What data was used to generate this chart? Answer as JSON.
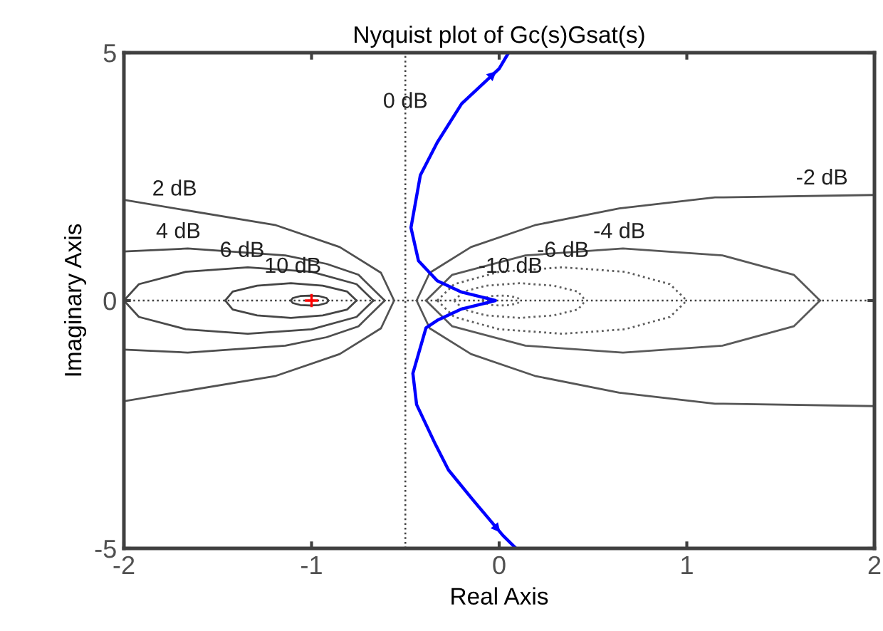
{
  "chart_data": {
    "type": "line",
    "title": "Nyquist plot of Gc(s)Gsat(s)",
    "xlabel": "Real Axis",
    "ylabel": "Imaginary Axis",
    "xlim": [
      -2,
      2
    ],
    "ylim": [
      -5,
      5
    ],
    "xticks": [
      -2,
      -1,
      0,
      1,
      2
    ],
    "yticks": [
      -5,
      0,
      5
    ],
    "grid": false,
    "series": [
      {
        "color": "#404040",
        "line_style": "solid",
        "x": [
          -1.11,
          -1.1,
          -1.06,
          -1.01,
          -0.96,
          -0.92,
          -0.91
        ],
        "values": [
          0,
          0.05,
          0.09,
          0.1,
          0.09,
          0.05,
          0
        ]
      },
      {
        "color": "#424242",
        "line_style": "solid",
        "x": [
          -1.11,
          -1.1,
          -1.06,
          -1.01,
          -0.96,
          -0.92,
          -0.91
        ],
        "values": [
          0,
          -0.05,
          -0.09,
          -0.1,
          -0.09,
          -0.05,
          0
        ]
      },
      {
        "color": "#444444",
        "line_style": "solid",
        "x": [
          -1.46,
          -1.42,
          -1.29,
          -1.11,
          -0.94,
          -0.81,
          -0.76
        ],
        "values": [
          0,
          0.18,
          0.3,
          0.35,
          0.3,
          0.18,
          0
        ]
      },
      {
        "color": "#464646",
        "line_style": "solid",
        "x": [
          -1.46,
          -1.42,
          -1.29,
          -1.11,
          -0.94,
          -0.81,
          -0.76
        ],
        "values": [
          0,
          -0.18,
          -0.3,
          -0.35,
          -0.3,
          -0.18,
          0
        ]
      },
      {
        "color": "#484848",
        "line_style": "solid",
        "x": [
          -2.0,
          -1.92,
          -1.67,
          -1.34,
          -1.0,
          -0.76,
          -0.67
        ],
        "values": [
          0,
          0.33,
          0.58,
          0.67,
          0.58,
          0.33,
          0
        ]
      },
      {
        "color": "#4a4a4a",
        "line_style": "solid",
        "x": [
          -2.0,
          -1.92,
          -1.67,
          -1.34,
          -1.0,
          -0.76,
          -0.67
        ],
        "values": [
          0,
          -0.33,
          -0.58,
          -0.67,
          -0.58,
          -0.33,
          0
        ]
      },
      {
        "color": "#4c4c4c",
        "line_style": "solid",
        "x": [
          -2.0,
          -1.66,
          -1.14,
          -0.92,
          -0.75,
          -0.61
        ],
        "values": [
          0.99,
          1.05,
          0.91,
          0.74,
          0.52,
          0
        ]
      },
      {
        "color": "#4e4e4e",
        "line_style": "solid",
        "x": [
          -2.0,
          -1.66,
          -1.14,
          -0.92,
          -0.75,
          -0.61
        ],
        "values": [
          -0.99,
          -1.05,
          -0.91,
          -0.74,
          -0.52,
          0
        ]
      },
      {
        "color": "#505050",
        "line_style": "solid",
        "x": [
          -2.0,
          -1.19,
          -0.85,
          -0.63,
          -0.56
        ],
        "values": [
          2.03,
          1.52,
          1.08,
          0.56,
          0
        ]
      },
      {
        "color": "#525252",
        "line_style": "solid",
        "x": [
          -2.0,
          -1.19,
          -0.85,
          -0.63,
          -0.56
        ],
        "values": [
          -2.03,
          -1.52,
          -1.08,
          -0.56,
          0
        ]
      },
      {
        "color": "#545454",
        "line_style": "solid",
        "x": [
          -0.44,
          -0.37,
          -0.15,
          0.19,
          0.64,
          1.15,
          2.0
        ],
        "values": [
          0,
          0.56,
          1.08,
          1.52,
          1.86,
          2.08,
          2.13
        ]
      },
      {
        "color": "#565656",
        "line_style": "solid",
        "x": [
          -0.44,
          -0.37,
          -0.15,
          0.19,
          0.64,
          1.15,
          2.0
        ],
        "values": [
          0,
          -0.56,
          -1.08,
          -1.52,
          -1.86,
          -2.08,
          -2.13
        ]
      },
      {
        "color": "#585858",
        "line_style": "solid",
        "x": [
          -0.39,
          -0.25,
          0.14,
          0.66,
          1.19,
          1.57,
          1.71
        ],
        "values": [
          0,
          0.52,
          0.91,
          1.05,
          0.91,
          0.52,
          0
        ]
      },
      {
        "color": "#5a5a5a",
        "line_style": "solid",
        "x": [
          -0.39,
          -0.25,
          0.14,
          0.66,
          1.19,
          1.57,
          1.71
        ],
        "values": [
          0,
          -0.52,
          -0.91,
          -1.05,
          -0.91,
          -0.52,
          0
        ]
      },
      {
        "color": "#5c5c5c",
        "line_style": "dotted",
        "x": [
          -0.33,
          -0.24,
          0.0,
          0.34,
          0.67,
          0.91,
          1.0
        ],
        "values": [
          0,
          0.33,
          0.58,
          0.67,
          0.58,
          0.33,
          0
        ]
      },
      {
        "color": "#5e5e5e",
        "line_style": "dotted",
        "x": [
          -0.33,
          -0.24,
          0.0,
          0.34,
          0.67,
          0.91,
          1.0
        ],
        "values": [
          0,
          -0.33,
          -0.58,
          -0.67,
          -0.58,
          -0.33,
          0
        ]
      },
      {
        "color": "#606060",
        "line_style": "dotted",
        "x": [
          -0.24,
          -0.19,
          -0.07,
          0.11,
          0.29,
          0.42,
          0.46
        ],
        "values": [
          0,
          0.18,
          0.3,
          0.35,
          0.3,
          0.18,
          0
        ]
      },
      {
        "color": "#626262",
        "line_style": "dotted",
        "x": [
          -0.24,
          -0.19,
          -0.07,
          0.11,
          0.29,
          0.42,
          0.46
        ],
        "values": [
          0,
          -0.18,
          -0.3,
          -0.35,
          -0.3,
          -0.18,
          0
        ]
      },
      {
        "color": "#646464",
        "line_style": "dotted",
        "x": [
          -0.09,
          -0.08,
          -0.04,
          0.01,
          0.06,
          0.1,
          0.11
        ],
        "values": [
          0,
          0.05,
          0.09,
          0.1,
          0.09,
          0.05,
          0
        ]
      },
      {
        "color": "#666666",
        "line_style": "dotted",
        "x": [
          -0.09,
          -0.08,
          -0.04,
          0.01,
          0.06,
          0.1,
          0.11
        ],
        "values": [
          0,
          -0.05,
          -0.09,
          -0.1,
          -0.09,
          -0.05,
          0
        ]
      },
      {
        "color": "#0000ff",
        "line_style": "solid",
        "x": [
          0.05,
          0.0,
          -0.2,
          -0.33,
          -0.42,
          -0.47,
          -0.43,
          -0.33,
          -0.2,
          -0.05,
          -0.02,
          -0.05,
          -0.2,
          -0.33,
          -0.39,
          -0.46,
          -0.44,
          -0.34,
          -0.27,
          -0.14,
          0.02,
          0.09
        ],
        "values": [
          5,
          4.68,
          3.97,
          3.19,
          2.53,
          1.47,
          0.8,
          0.4,
          0.17,
          0.03,
          0,
          -0.03,
          -0.17,
          -0.4,
          -0.55,
          -1.47,
          -2.1,
          -2.9,
          -3.42,
          -4.02,
          -4.74,
          -5
        ]
      },
      {
        "type": "scatter",
        "color": "#ff0000",
        "marker": "cross",
        "x": [
          -1
        ],
        "values": [
          0
        ]
      }
    ],
    "ref_lines": [
      {
        "axis": "x",
        "value": -0.5,
        "label": "0 dB",
        "color": "#404040",
        "line_style": "dotted"
      },
      {
        "axis": "y",
        "value": 0,
        "color": "#404040",
        "line_style": "dotted"
      }
    ],
    "annotations": [
      {
        "text": "2 dB",
        "x": -1.73,
        "y": 1.91
      },
      {
        "text": "4 dB",
        "x": -1.71,
        "y": 1.05
      },
      {
        "text": "6 dB",
        "x": -1.37,
        "y": 0.67
      },
      {
        "text": "10 dB",
        "x": -1.1,
        "y": 0.35
      },
      {
        "text": "-2 dB",
        "x": 1.72,
        "y": 2.13
      },
      {
        "text": "-4 dB",
        "x": 0.64,
        "y": 1.05
      },
      {
        "text": "-6 dB",
        "x": 0.34,
        "y": 0.67
      },
      {
        "text": "-10 dB",
        "x": 0.06,
        "y": 0.35
      }
    ]
  }
}
